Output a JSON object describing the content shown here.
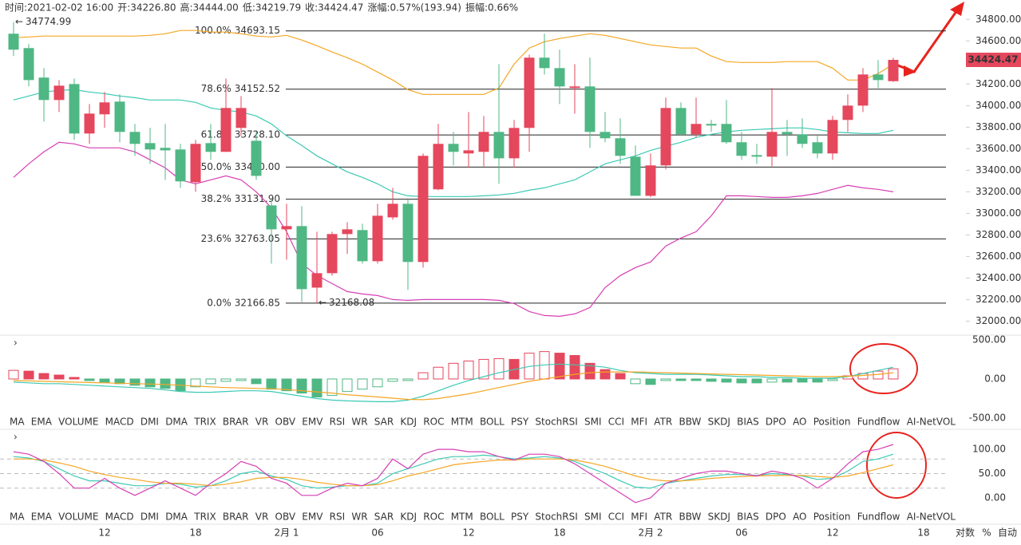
{
  "header": [
    {
      "label": "时间:",
      "value": "2021-02-02 16:00"
    },
    {
      "label": "开:",
      "value": "34226.80"
    },
    {
      "label": "高:",
      "value": "34444.00"
    },
    {
      "label": "低:",
      "value": "34219.79"
    },
    {
      "label": "收:",
      "value": "34424.47"
    },
    {
      "label": "涨幅:",
      "value": "0.57%(193.94)"
    },
    {
      "label": "振幅:",
      "value": "0.66%"
    }
  ],
  "tabs": [
    "MA",
    "EMA",
    "VOLUME",
    "MACD",
    "DMI",
    "DMA",
    "TRIX",
    "BRAR",
    "VR",
    "OBV",
    "EMV",
    "RSI",
    "WR",
    "SAR",
    "KDJ",
    "ROC",
    "MTM",
    "BOLL",
    "PSY",
    "StochRSI",
    "SMI",
    "CCI",
    "MFI",
    "ATR",
    "BBW",
    "SKDJ",
    "BIAS",
    "DPO",
    "AO",
    "Position",
    "Fundflow",
    "AI-NetVOL"
  ],
  "scale_options": [
    "对数",
    "%",
    "自动"
  ],
  "chart_data": [
    {
      "type": "candlestick",
      "up_color": "#e5475d",
      "down_color": "#4fb784",
      "categories": [
        null,
        null,
        null,
        null,
        null,
        null,
        "12",
        null,
        null,
        null,
        null,
        null,
        "18",
        null,
        null,
        null,
        null,
        null,
        "2月 1",
        null,
        null,
        null,
        null,
        null,
        "06",
        null,
        null,
        null,
        null,
        null,
        "12",
        null,
        null,
        null,
        null,
        null,
        "18",
        null,
        null,
        null,
        null,
        null,
        "2月 2",
        null,
        null,
        null,
        null,
        null,
        "06",
        null,
        null,
        null,
        null,
        null,
        "12",
        null,
        null,
        null,
        null,
        null,
        "18"
      ],
      "open": [
        34667,
        34534,
        34260,
        34052,
        34200,
        33741,
        33919,
        34037,
        33756,
        33652,
        33608,
        33593,
        33289,
        33652,
        33571,
        33793,
        33674,
        33074,
        32852,
        32882,
        32311,
        32445,
        32808,
        32845,
        32556,
        32963,
        33089,
        32549,
        33223,
        33645,
        33556,
        33571,
        33756,
        33511,
        33793,
        34445,
        34348,
        34163,
        34178,
        33756,
        33697,
        33526,
        33163,
        33445,
        33978,
        33734,
        33830,
        33830,
        33660,
        33541,
        33526,
        33756,
        33734,
        33660,
        33556,
        33867,
        34000,
        34289,
        34226.8,
        null,
        null
      ],
      "high": [
        34774.99,
        34571,
        34348,
        34237,
        34252,
        34015,
        34126,
        34104,
        33830,
        33793,
        33830,
        33645,
        33682,
        33830,
        34252,
        34089,
        33756,
        33126,
        33089,
        33067,
        32830,
        32830,
        32919,
        32904,
        33089,
        33237,
        33126,
        33556,
        33830,
        33756,
        33941,
        33904,
        34385,
        33867,
        34474,
        34667,
        34519,
        34385,
        34445,
        33941,
        33882,
        33630,
        33556,
        34074,
        34030,
        34074,
        33867,
        34052,
        33756,
        33645,
        34163,
        33867,
        33882,
        33719,
        33904,
        34104,
        34348,
        34422,
        34444,
        null,
        null
      ],
      "low": [
        34460,
        34178,
        33852,
        33941,
        33682,
        33645,
        33793,
        33660,
        33534,
        33460,
        33311,
        33237,
        33200,
        33497,
        33571,
        33719,
        33311,
        32534,
        32571,
        32178,
        32168.08,
        32423,
        32623,
        32534,
        32534,
        32941,
        32289,
        32497,
        33215,
        33445,
        33423,
        33437,
        33274,
        33423,
        33571,
        34289,
        34015,
        33926,
        33608,
        33660,
        33460,
        33163,
        33149,
        33408,
        33719,
        33704,
        33756,
        33645,
        33497,
        33460,
        33437,
        33534,
        33608,
        33511,
        33497,
        33756,
        33941,
        34163,
        34219.79,
        null,
        null
      ],
      "close": [
        34519,
        34237,
        34052,
        34185,
        33741,
        33926,
        34030,
        33756,
        33645,
        33593,
        33585,
        33297,
        33645,
        33571,
        33978,
        33978,
        33348,
        32852,
        32882,
        32297,
        32445,
        32808,
        32852,
        32556,
        32978,
        33089,
        32549,
        33534,
        33645,
        33571,
        33585,
        33756,
        33511,
        33793,
        34445,
        34348,
        34178,
        34178,
        33756,
        33697,
        33534,
        33163,
        33445,
        33978,
        33734,
        33830,
        33815,
        33660,
        33534,
        33526,
        33756,
        33734,
        33645,
        33556,
        33867,
        34000,
        34289,
        34237,
        34424.47,
        null,
        null
      ],
      "series": [
        {
          "color": "#f5a623",
          "values": [
            34630,
            34637,
            34645,
            34645,
            34645,
            34645,
            34645,
            34645,
            34645,
            34652,
            34667,
            34697,
            34697,
            34682,
            34682,
            34667,
            34645,
            34637,
            34652,
            34608,
            34556,
            34497,
            34445,
            34385,
            34311,
            34237,
            34148,
            34104,
            34104,
            34104,
            34104,
            34104,
            34163,
            34385,
            34534,
            34593,
            34622,
            34645,
            34667,
            34652,
            34622,
            34593,
            34563,
            34548,
            34534,
            34534,
            34460,
            34408,
            34400,
            34400,
            34400,
            34408,
            34408,
            34408,
            34348,
            34237,
            34237,
            34297,
            34385,
            null,
            null
          ]
        },
        {
          "color": "#3cc9b4",
          "values": [
            34052,
            34089,
            34126,
            34141,
            34148,
            34126,
            34111,
            34089,
            34074,
            34052,
            34052,
            34052,
            34030,
            33978,
            33956,
            33941,
            33904,
            33830,
            33719,
            33630,
            33534,
            33460,
            33385,
            33334,
            33274,
            33200,
            33163,
            33156,
            33156,
            33156,
            33156,
            33163,
            33171,
            33186,
            33215,
            33237,
            33274,
            33311,
            33385,
            33460,
            33497,
            33534,
            33585,
            33623,
            33660,
            33704,
            33734,
            33756,
            33771,
            33778,
            33785,
            33793,
            33793,
            33778,
            33756,
            33748,
            33741,
            33741,
            33771,
            null,
            null
          ]
        },
        {
          "color": "#d63fb4",
          "values": [
            33334,
            33460,
            33571,
            33660,
            33645,
            33608,
            33608,
            33608,
            33571,
            33497,
            33422,
            33311,
            33274,
            33311,
            33348,
            33311,
            33200,
            33052,
            32830,
            32534,
            32423,
            32348,
            32274,
            32252,
            32237,
            32200,
            32193,
            32200,
            32200,
            32200,
            32200,
            32200,
            32193,
            32163,
            32089,
            32052,
            32045,
            32067,
            32126,
            32311,
            32423,
            32497,
            32549,
            32697,
            32771,
            32830,
            32978,
            33163,
            33163,
            33156,
            33148,
            33148,
            33163,
            33185,
            33223,
            33260,
            33237,
            33223,
            33200,
            null,
            null
          ]
        }
      ],
      "fib_levels": [
        {
          "ratio": "100.0%",
          "value": 34693.15,
          "label": "34693.15"
        },
        {
          "ratio": "78.6%",
          "value": 34152.52,
          "label": "34152.52"
        },
        {
          "ratio": "61.8%",
          "value": 33728.1,
          "label": "33728.10"
        },
        {
          "ratio": "50.0%",
          "value": 33430,
          "label": "33430.00"
        },
        {
          "ratio": "38.2%",
          "value": 33131.9,
          "label": "33131.90"
        },
        {
          "ratio": "23.6%",
          "value": 32763.05,
          "label": "32763.05"
        },
        {
          "ratio": "0.0%",
          "value": 32166.85,
          "label": "32166.85"
        }
      ],
      "high_label": 34774.99,
      "low_label": 32168.08,
      "current_price": 34424.47,
      "ylim": [
        31870,
        34980
      ],
      "yticks": [
        {
          "value": 34800,
          "label": "34800.00"
        },
        {
          "value": 34600,
          "label": "34600.00"
        },
        {
          "value": 34400,
          "label": "34400.00"
        },
        {
          "value": 34200,
          "label": "34200.00"
        },
        {
          "value": 34000,
          "label": "34000.00"
        },
        {
          "value": 33800,
          "label": "33800.00"
        },
        {
          "value": 33600,
          "label": "33600.00"
        },
        {
          "value": 33400,
          "label": "33400.00"
        },
        {
          "value": 33200,
          "label": "33200.00"
        },
        {
          "value": 33000,
          "label": "33000.00"
        },
        {
          "value": 32800,
          "label": "32800.00"
        },
        {
          "value": 32600,
          "label": "32600.00"
        },
        {
          "value": 32400,
          "label": "32400.00"
        },
        {
          "value": 32200,
          "label": "32200.00"
        },
        {
          "value": 32000,
          "label": "32000.00"
        }
      ]
    },
    {
      "type": "macd",
      "active_tab": "MACD",
      "up_color": "#e5475d",
      "down_color": "#4fb784",
      "values": [
        110,
        100,
        70,
        50,
        20,
        -20,
        -40,
        -60,
        -80,
        -100,
        -120,
        -150,
        -100,
        -60,
        -30,
        -20,
        -60,
        -130,
        -150,
        -180,
        -230,
        -210,
        -160,
        -130,
        -100,
        -30,
        -20,
        80,
        150,
        200,
        230,
        250,
        260,
        250,
        330,
        350,
        330,
        300,
        200,
        120,
        70,
        -60,
        -70,
        -20,
        -20,
        -20,
        -30,
        -40,
        -50,
        -50,
        -40,
        -40,
        -40,
        -40,
        -20,
        40,
        70,
        100,
        130,
        null,
        null
      ],
      "series": [
        {
          "color": "#3cc9b4",
          "values": [
            -40,
            -50,
            -60,
            -60,
            -70,
            -80,
            -90,
            -100,
            -110,
            -120,
            -140,
            -160,
            -170,
            -170,
            -160,
            -150,
            -150,
            -160,
            -190,
            -220,
            -250,
            -270,
            -280,
            -285,
            -290,
            -290,
            -270,
            -220,
            -150,
            -80,
            -20,
            30,
            80,
            120,
            160,
            180,
            190,
            180,
            170,
            150,
            110,
            80,
            70,
            60,
            60,
            60,
            50,
            40,
            30,
            30,
            20,
            20,
            10,
            10,
            10,
            30,
            70,
            110,
            150,
            null,
            null
          ]
        },
        {
          "color": "#f5a623",
          "values": [
            -20,
            -25,
            -30,
            -35,
            -40,
            -45,
            -50,
            -55,
            -60,
            -65,
            -70,
            -80,
            -90,
            -100,
            -110,
            -115,
            -120,
            -125,
            -135,
            -150,
            -165,
            -180,
            -200,
            -215,
            -230,
            -245,
            -260,
            -265,
            -250,
            -220,
            -190,
            -150,
            -110,
            -70,
            -30,
            0,
            30,
            60,
            80,
            90,
            90,
            90,
            85,
            80,
            75,
            70,
            65,
            60,
            55,
            50,
            45,
            40,
            35,
            30,
            30,
            35,
            45,
            60,
            80,
            null,
            null
          ]
        }
      ],
      "ylim": [
        -500,
        560
      ],
      "yticks": [
        {
          "value": 500,
          "label": "500.00"
        },
        {
          "value": 0,
          "label": "0.00"
        },
        {
          "value": -500,
          "label": "-500.00"
        }
      ]
    },
    {
      "type": "line",
      "active_tab": "KDJ",
      "grid_levels": [
        80,
        50,
        20
      ],
      "series": [
        {
          "color": "#3cc9b4",
          "values": [
            85,
            82,
            75,
            60,
            45,
            35,
            35,
            30,
            25,
            25,
            30,
            28,
            22,
            25,
            35,
            50,
            55,
            45,
            38,
            25,
            20,
            22,
            25,
            25,
            30,
            50,
            60,
            70,
            80,
            85,
            85,
            88,
            85,
            80,
            82,
            85,
            82,
            75,
            62,
            50,
            35,
            22,
            20,
            30,
            35,
            40,
            45,
            48,
            48,
            46,
            50,
            48,
            45,
            38,
            40,
            55,
            75,
            80,
            90,
            null,
            null
          ]
        },
        {
          "color": "#f5a623",
          "values": [
            80,
            80,
            78,
            72,
            65,
            55,
            48,
            42,
            38,
            33,
            30,
            30,
            28,
            25,
            28,
            33,
            40,
            42,
            42,
            38,
            32,
            28,
            25,
            25,
            27,
            35,
            45,
            52,
            60,
            68,
            72,
            75,
            78,
            78,
            80,
            80,
            80,
            78,
            72,
            65,
            55,
            45,
            38,
            35,
            35,
            37,
            40,
            42,
            44,
            45,
            46,
            46,
            46,
            44,
            42,
            45,
            52,
            60,
            68,
            null,
            null
          ]
        },
        {
          "color": "#d63fb4",
          "values": [
            95,
            90,
            75,
            50,
            20,
            20,
            40,
            20,
            5,
            20,
            35,
            20,
            5,
            30,
            50,
            75,
            65,
            40,
            30,
            5,
            5,
            20,
            30,
            25,
            40,
            80,
            60,
            90,
            100,
            100,
            95,
            95,
            85,
            78,
            90,
            90,
            85,
            70,
            50,
            30,
            10,
            -10,
            0,
            30,
            40,
            50,
            55,
            55,
            50,
            45,
            55,
            50,
            40,
            20,
            40,
            70,
            95,
            100,
            110,
            null,
            null
          ]
        }
      ],
      "ylim": [
        -20,
        138
      ],
      "yticks": [
        {
          "value": 100,
          "label": "100.00"
        },
        {
          "value": 50,
          "label": "50.00"
        },
        {
          "value": 0,
          "label": "0.00"
        }
      ]
    }
  ]
}
